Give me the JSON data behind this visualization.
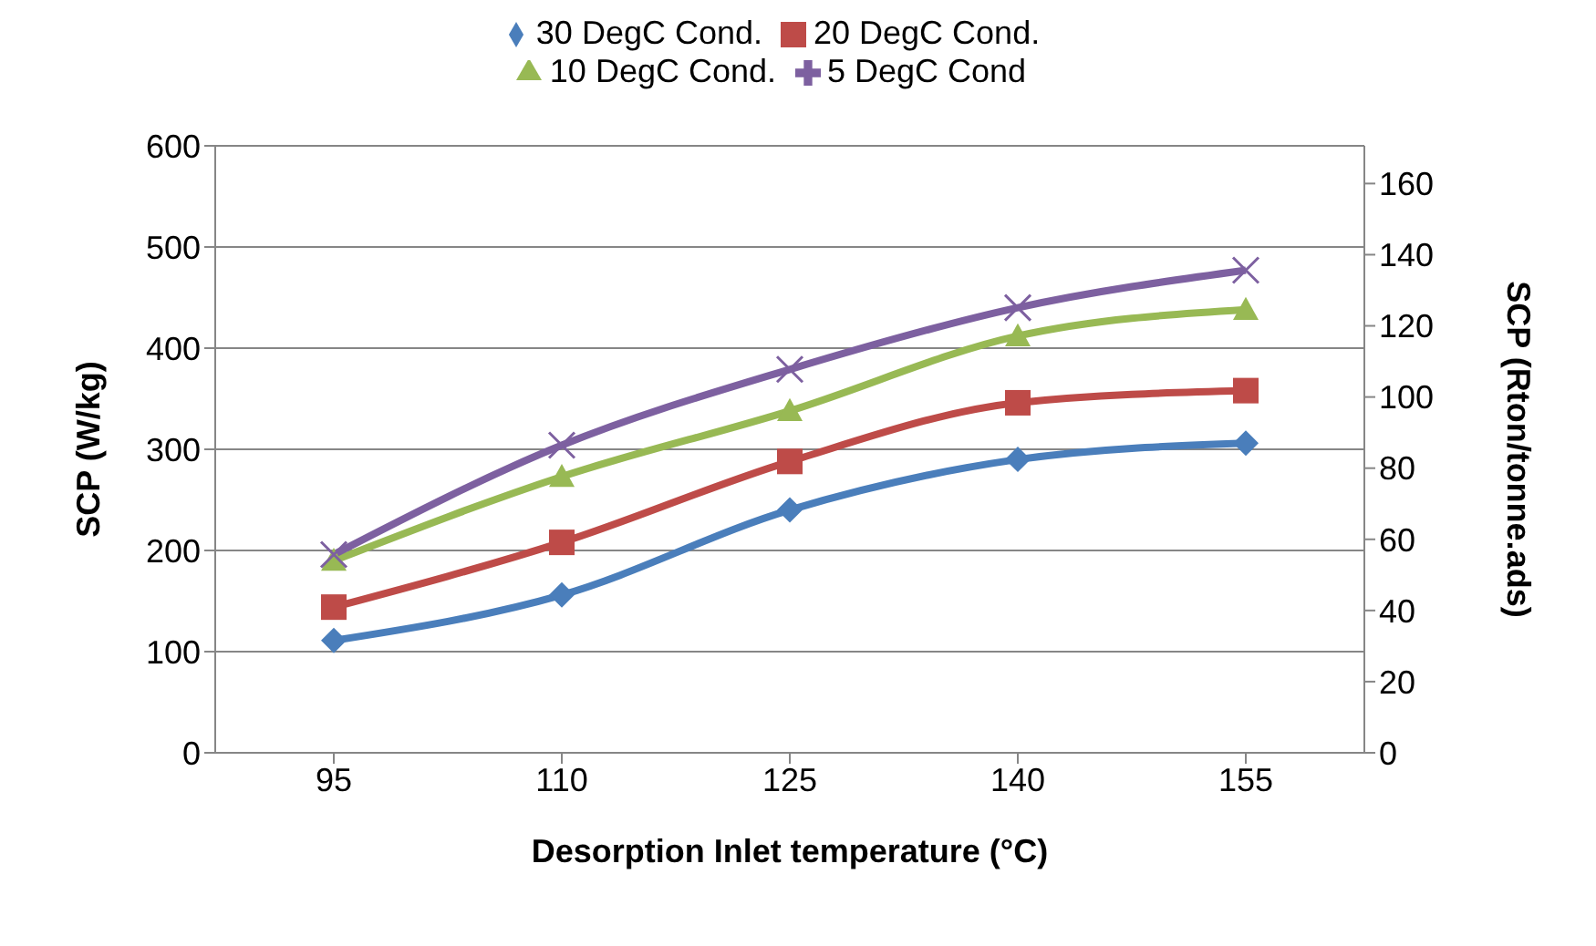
{
  "chart_data": {
    "type": "line",
    "xlabel": "Desorption Inlet temperature (°C)",
    "ylabel": "SCP (W/kg)",
    "y2label": "SCP (Rton/tonne.ads)",
    "categories": [
      "95",
      "110",
      "125",
      "140",
      "155"
    ],
    "series": [
      {
        "name": "30 DegC Cond.",
        "color": "#4a7ebb",
        "marker": "diamond",
        "values": [
          111,
          156,
          240,
          290,
          306
        ]
      },
      {
        "name": "20 DegC Cond.",
        "color": "#be4b48",
        "marker": "square",
        "values": [
          144,
          208,
          288,
          346,
          358
        ]
      },
      {
        "name": "10 DegC Cond.",
        "color": "#98b954",
        "marker": "triangle",
        "values": [
          190,
          273,
          338,
          412,
          438
        ]
      },
      {
        "name": "5 DegC Cond",
        "color": "#7d60a0",
        "marker": "cross",
        "values": [
          196,
          304,
          379,
          440,
          477
        ]
      }
    ],
    "ylim": [
      0,
      600
    ],
    "yticks": [
      0,
      100,
      200,
      300,
      400,
      500,
      600
    ],
    "y2lim": [
      0,
      170.6
    ],
    "y2ticks": [
      0,
      20,
      40,
      60,
      80,
      100,
      120,
      140,
      160
    ],
    "grid": "y",
    "legend": "top",
    "line_style": "solid"
  }
}
